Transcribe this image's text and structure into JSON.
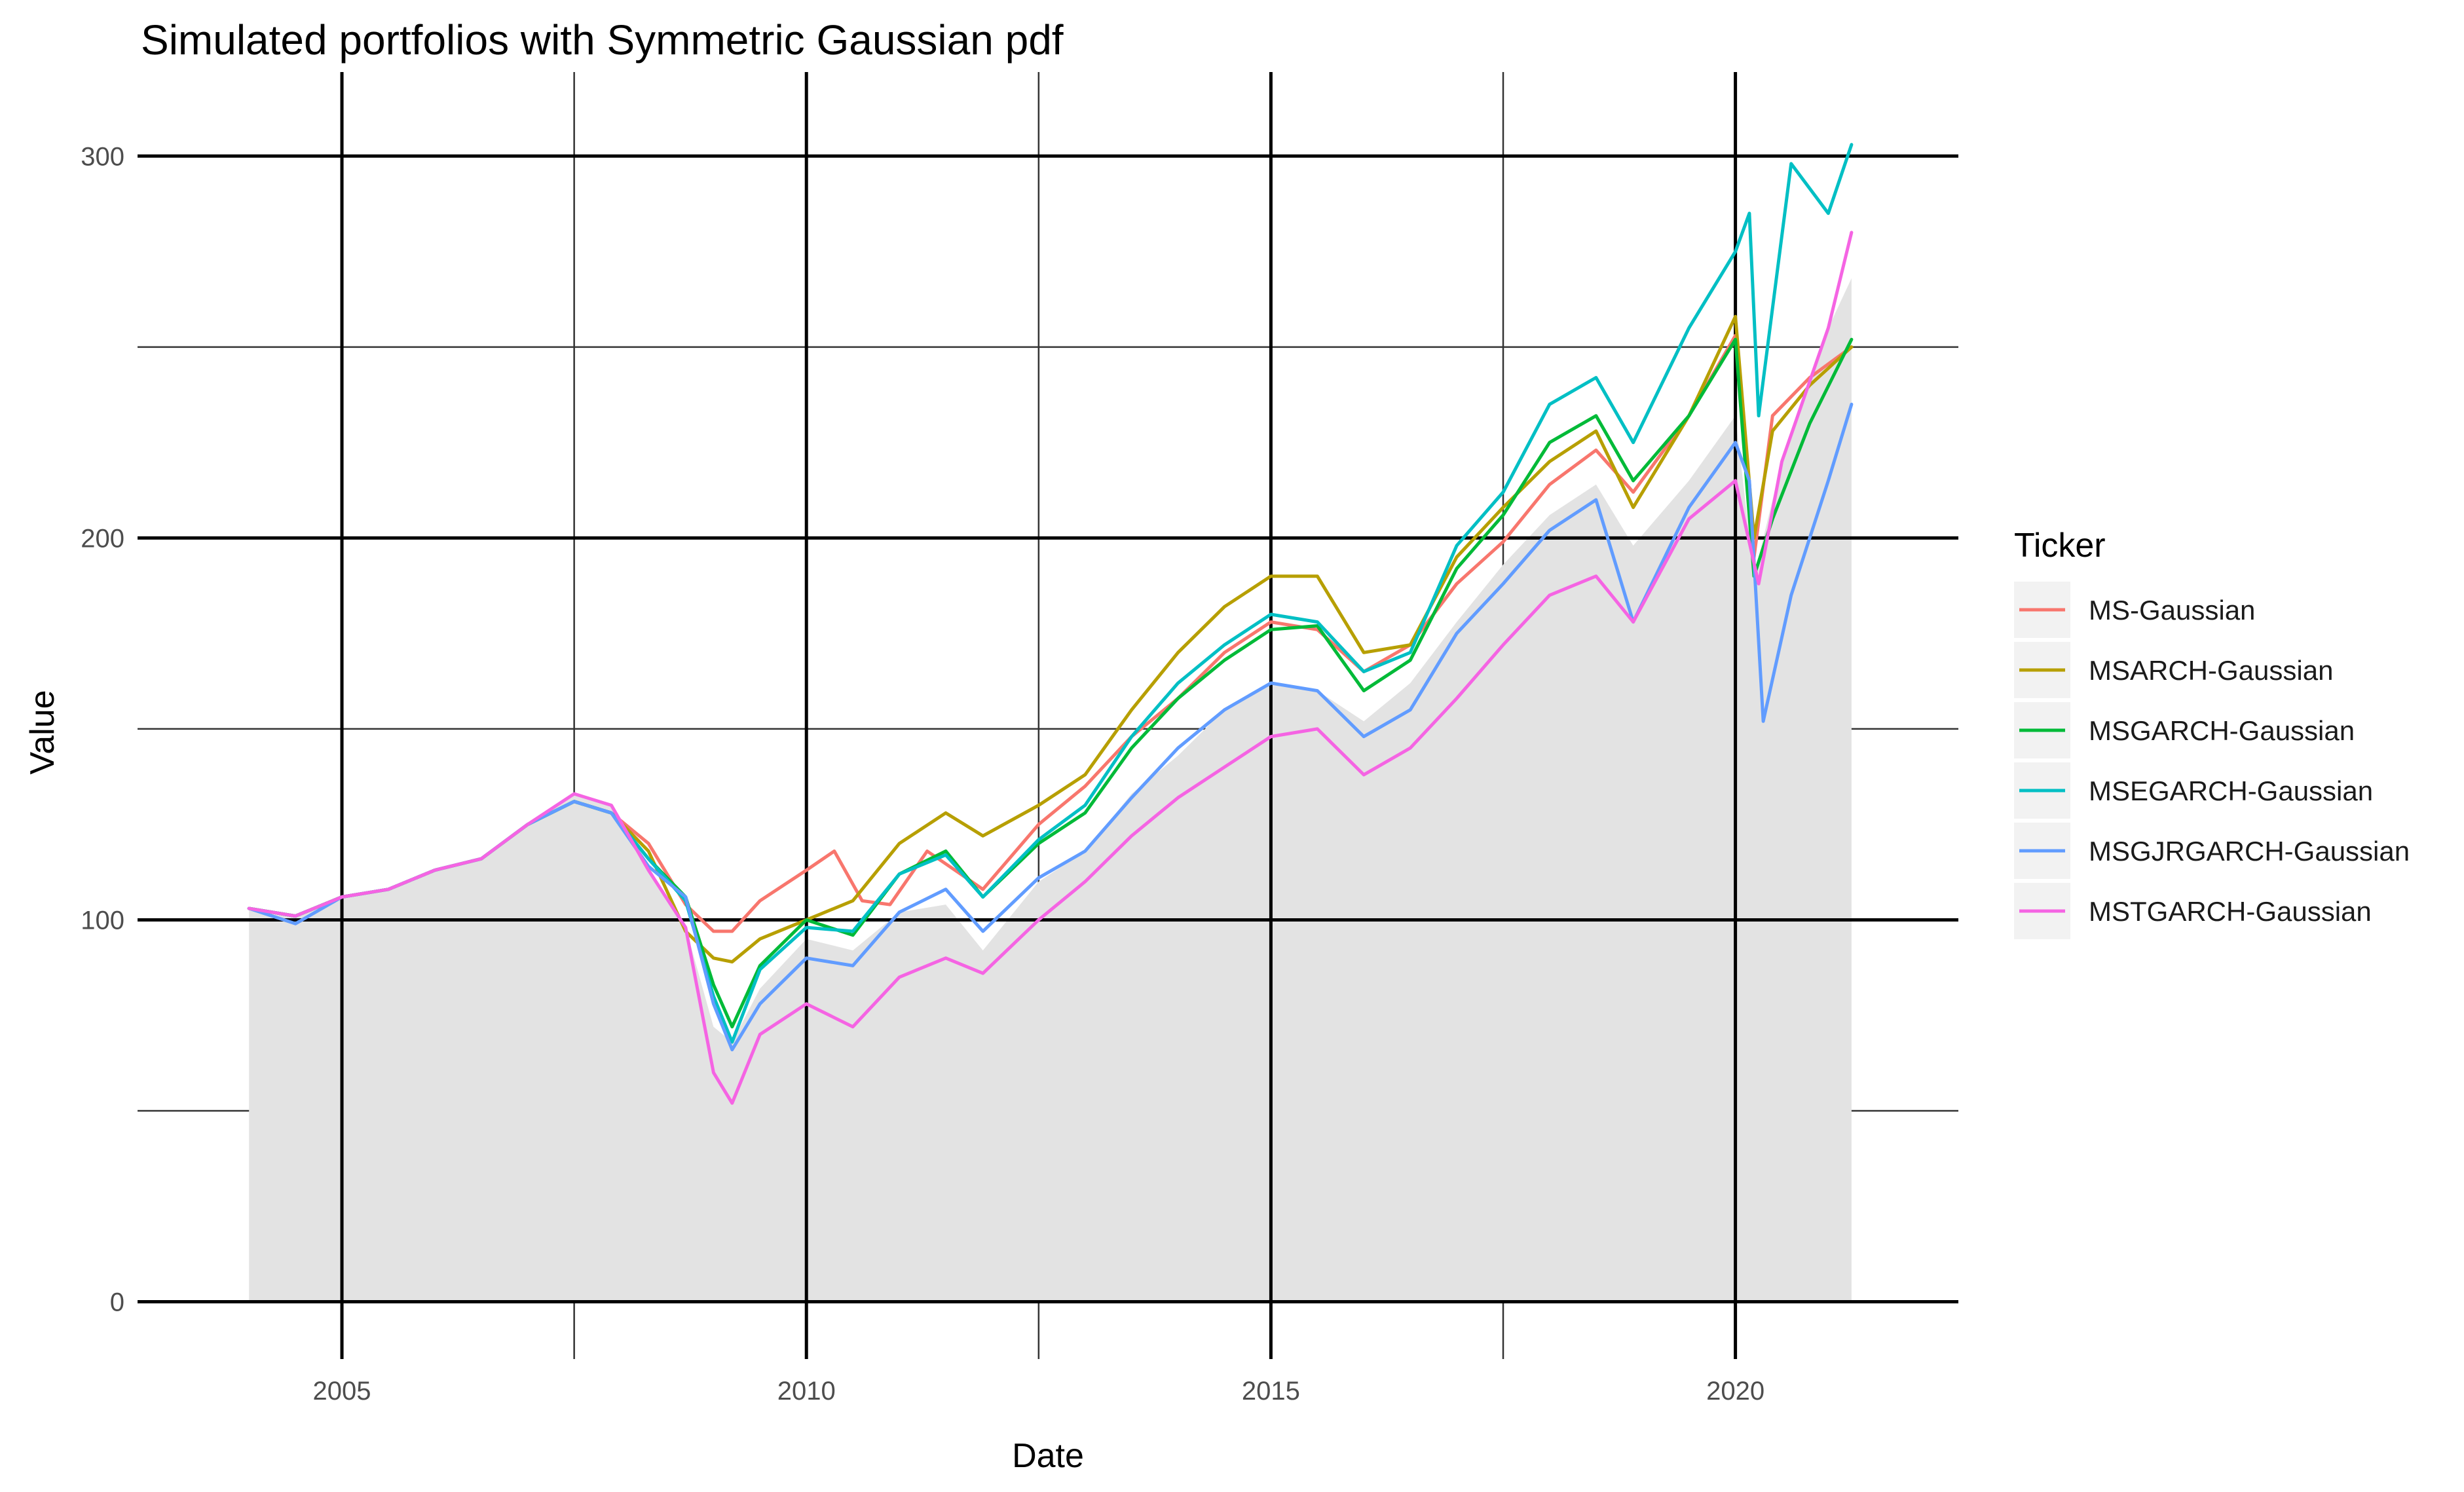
{
  "chart_data": {
    "type": "line",
    "title": "Simulated portfolios with Symmetric Gaussian pdf",
    "xlabel": "Date",
    "ylabel": "Value",
    "xlim": [
      2002.8,
      2022.4
    ],
    "ylim": [
      -15,
      322
    ],
    "x_ticks": [
      2005,
      2010,
      2015,
      2020
    ],
    "x_tick_labels": [
      "2005",
      "2010",
      "2015",
      "2020"
    ],
    "y_ticks": [
      0,
      100,
      200,
      300
    ],
    "y_tick_labels": [
      "0",
      "100",
      "200",
      "300"
    ],
    "grid": true,
    "legend_position": "right",
    "legend_title": "Ticker",
    "background_area": {
      "color": "#e3e3e3",
      "x": [
        2004.0,
        2004.5,
        2005.0,
        2005.5,
        2006.0,
        2006.5,
        2007.0,
        2007.5,
        2007.9,
        2008.3,
        2008.7,
        2009.0,
        2009.2,
        2009.5,
        2010.0,
        2010.5,
        2011.0,
        2011.5,
        2011.9,
        2012.5,
        2013.0,
        2013.5,
        2014.0,
        2014.5,
        2015.0,
        2015.5,
        2016.0,
        2016.5,
        2017.0,
        2017.5,
        2018.0,
        2018.5,
        2018.9,
        2019.5,
        2020.0,
        2020.2,
        2020.5,
        2021.0,
        2021.25
      ],
      "values": [
        103,
        101,
        106,
        108,
        113,
        116,
        125,
        133,
        130,
        114,
        98,
        72,
        68,
        82,
        95,
        92,
        102,
        104,
        92,
        110,
        118,
        133,
        143,
        155,
        162,
        160,
        152,
        162,
        178,
        193,
        206,
        214,
        198,
        215,
        232,
        190,
        220,
        255,
        268
      ]
    },
    "series": [
      {
        "name": "MS-Gaussian",
        "color": "#F8766D",
        "x": [
          2004.0,
          2004.5,
          2005.0,
          2005.5,
          2006.0,
          2006.5,
          2007.0,
          2007.5,
          2007.9,
          2008.3,
          2008.7,
          2009.0,
          2009.2,
          2009.5,
          2010.0,
          2010.3,
          2010.6,
          2010.9,
          2011.3,
          2011.9,
          2012.5,
          2013.0,
          2013.5,
          2014.0,
          2014.5,
          2015.0,
          2015.5,
          2016.0,
          2016.5,
          2017.0,
          2017.5,
          2018.0,
          2018.5,
          2018.9,
          2019.5,
          2020.0,
          2020.2,
          2020.4,
          2020.8,
          2021.25
        ],
        "values": [
          103,
          101,
          106,
          108,
          113,
          116,
          125,
          131,
          128,
          120,
          104,
          97,
          97,
          105,
          113,
          118,
          105,
          104,
          118,
          108,
          125,
          135,
          148,
          158,
          170,
          178,
          176,
          165,
          172,
          188,
          199,
          214,
          223,
          212,
          232,
          253,
          195,
          232,
          242,
          250
        ]
      },
      {
        "name": "MSARCH-Gaussian",
        "color": "#B79F00",
        "x": [
          2004.0,
          2004.5,
          2005.0,
          2005.5,
          2006.0,
          2006.5,
          2007.0,
          2007.5,
          2007.9,
          2008.3,
          2008.7,
          2009.0,
          2009.2,
          2009.5,
          2010.0,
          2010.5,
          2011.0,
          2011.5,
          2011.9,
          2012.5,
          2013.0,
          2013.5,
          2014.0,
          2014.5,
          2015.0,
          2015.5,
          2016.0,
          2016.5,
          2017.0,
          2017.5,
          2018.0,
          2018.5,
          2018.9,
          2019.5,
          2020.0,
          2020.2,
          2020.4,
          2020.8,
          2021.25
        ],
        "values": [
          103,
          101,
          106,
          108,
          113,
          116,
          125,
          131,
          128,
          118,
          97,
          90,
          89,
          95,
          100,
          105,
          120,
          128,
          122,
          130,
          138,
          155,
          170,
          182,
          190,
          190,
          170,
          172,
          195,
          208,
          220,
          228,
          208,
          232,
          258,
          200,
          228,
          240,
          250
        ]
      },
      {
        "name": "MSGARCH-Gaussian",
        "color": "#00BA38",
        "x": [
          2004.0,
          2004.5,
          2005.0,
          2005.5,
          2006.0,
          2006.5,
          2007.0,
          2007.5,
          2007.9,
          2008.3,
          2008.7,
          2009.0,
          2009.2,
          2009.5,
          2010.0,
          2010.5,
          2011.0,
          2011.5,
          2011.9,
          2012.5,
          2013.0,
          2013.5,
          2014.0,
          2014.5,
          2015.0,
          2015.5,
          2016.0,
          2016.5,
          2017.0,
          2017.5,
          2018.0,
          2018.5,
          2018.9,
          2019.5,
          2020.0,
          2020.2,
          2020.4,
          2020.8,
          2021.25
        ],
        "values": [
          103,
          101,
          106,
          108,
          113,
          116,
          125,
          131,
          128,
          116,
          106,
          83,
          72,
          88,
          100,
          96,
          112,
          118,
          106,
          120,
          128,
          145,
          158,
          168,
          176,
          177,
          160,
          168,
          192,
          206,
          225,
          232,
          215,
          232,
          252,
          190,
          205,
          230,
          252
        ]
      },
      {
        "name": "MSEGARCH-Gaussian",
        "color": "#00BFC4",
        "x": [
          2004.0,
          2004.5,
          2005.0,
          2005.5,
          2006.0,
          2006.5,
          2007.0,
          2007.5,
          2007.9,
          2008.3,
          2008.7,
          2009.0,
          2009.2,
          2009.5,
          2010.0,
          2010.5,
          2011.0,
          2011.5,
          2011.9,
          2012.5,
          2013.0,
          2013.5,
          2014.0,
          2014.5,
          2015.0,
          2015.5,
          2016.0,
          2016.5,
          2017.0,
          2017.5,
          2018.0,
          2018.5,
          2018.9,
          2019.5,
          2020.0,
          2020.15,
          2020.25,
          2020.6,
          2021.0,
          2021.25
        ],
        "values": [
          103,
          101,
          106,
          108,
          113,
          116,
          125,
          131,
          128,
          116,
          105,
          80,
          68,
          87,
          98,
          97,
          112,
          117,
          106,
          121,
          130,
          148,
          162,
          172,
          180,
          178,
          165,
          170,
          198,
          212,
          235,
          242,
          225,
          255,
          275,
          285,
          232,
          298,
          285,
          303
        ]
      },
      {
        "name": "MSGJRGARCH-Gaussian",
        "color": "#619CFF",
        "x": [
          2004.0,
          2004.5,
          2005.0,
          2005.5,
          2006.0,
          2006.5,
          2007.0,
          2007.5,
          2007.9,
          2008.3,
          2008.7,
          2009.0,
          2009.2,
          2009.5,
          2010.0,
          2010.5,
          2011.0,
          2011.5,
          2011.9,
          2012.5,
          2013.0,
          2013.5,
          2014.0,
          2014.5,
          2015.0,
          2015.5,
          2016.0,
          2016.5,
          2017.0,
          2017.5,
          2018.0,
          2018.5,
          2018.9,
          2019.5,
          2020.0,
          2020.15,
          2020.3,
          2020.6,
          2021.0,
          2021.25
        ],
        "values": [
          103,
          99,
          106,
          108,
          113,
          116,
          125,
          131,
          128,
          114,
          106,
          78,
          66,
          78,
          90,
          88,
          102,
          108,
          97,
          111,
          118,
          132,
          145,
          155,
          162,
          160,
          148,
          155,
          175,
          188,
          202,
          210,
          178,
          208,
          225,
          215,
          152,
          185,
          215,
          235
        ]
      },
      {
        "name": "MSTGARCH-Gaussian",
        "color": "#F564E3",
        "x": [
          2004.0,
          2004.5,
          2005.0,
          2005.5,
          2006.0,
          2006.5,
          2007.0,
          2007.5,
          2007.9,
          2008.3,
          2008.7,
          2009.0,
          2009.2,
          2009.5,
          2010.0,
          2010.5,
          2011.0,
          2011.5,
          2011.9,
          2012.5,
          2013.0,
          2013.5,
          2014.0,
          2014.5,
          2015.0,
          2015.5,
          2016.0,
          2016.5,
          2017.0,
          2017.5,
          2018.0,
          2018.5,
          2018.9,
          2019.5,
          2020.0,
          2020.25,
          2020.5,
          2021.0,
          2021.25
        ],
        "values": [
          103,
          101,
          106,
          108,
          113,
          116,
          125,
          133,
          130,
          113,
          98,
          60,
          52,
          70,
          78,
          72,
          85,
          90,
          86,
          100,
          110,
          122,
          132,
          140,
          148,
          150,
          138,
          145,
          158,
          172,
          185,
          190,
          178,
          205,
          215,
          188,
          220,
          255,
          280
        ]
      }
    ]
  }
}
